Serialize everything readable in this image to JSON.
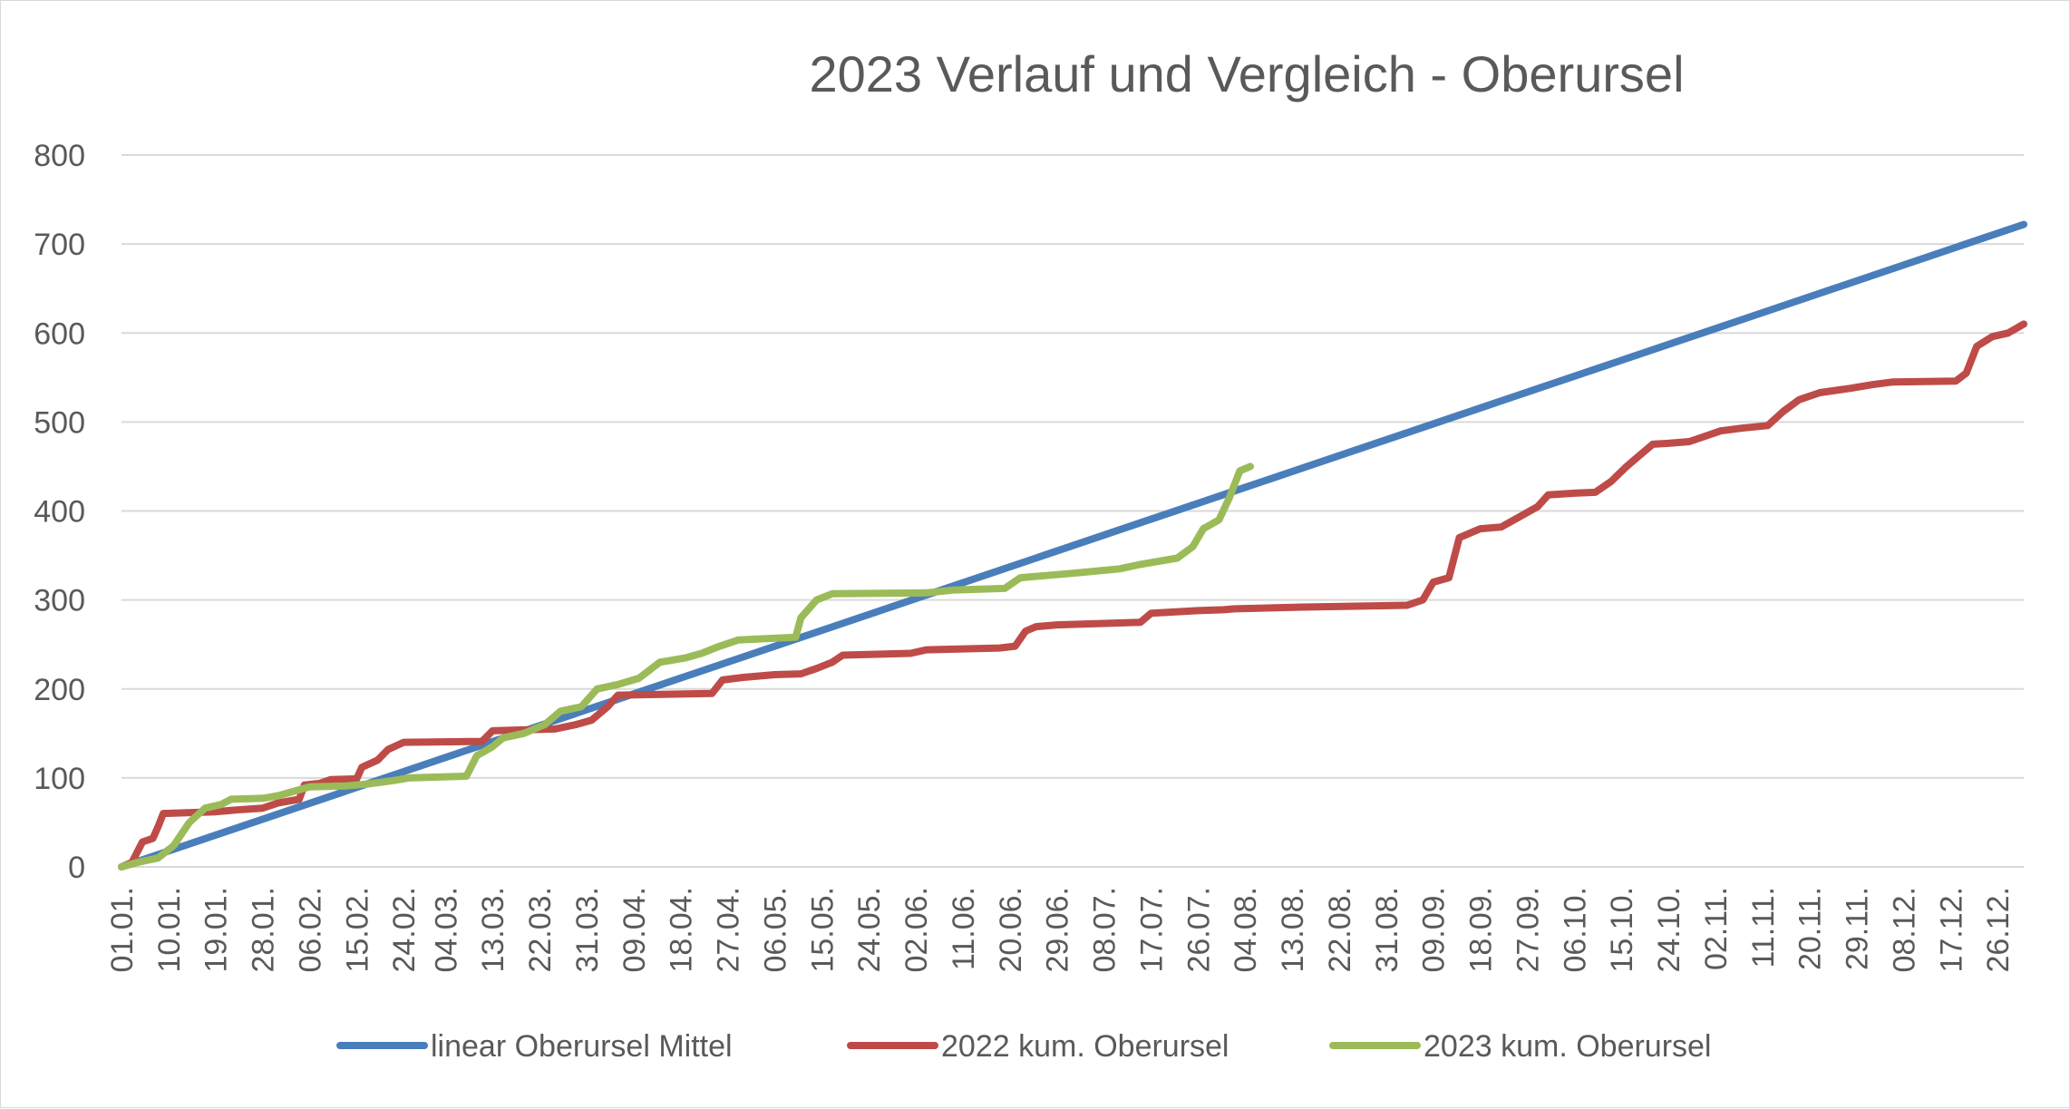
{
  "chart_data": {
    "type": "line",
    "title": "2023 Verlauf und Vergleich - Oberursel",
    "xlabel": "",
    "ylabel": "",
    "ylim": [
      0,
      800
    ],
    "yticks": [
      0,
      100,
      200,
      300,
      400,
      500,
      600,
      700,
      800
    ],
    "xticks": [
      "01.01.",
      "10.01.",
      "19.01.",
      "28.01.",
      "06.02.",
      "15.02.",
      "24.02.",
      "04.03.",
      "13.03.",
      "22.03.",
      "31.03.",
      "09.04.",
      "18.04.",
      "27.04.",
      "06.05.",
      "15.05.",
      "24.05.",
      "02.06.",
      "11.06.",
      "20.06.",
      "29.06.",
      "08.07.",
      "17.07.",
      "26.07.",
      "04.08.",
      "13.08.",
      "22.08.",
      "31.08.",
      "09.09.",
      "18.09.",
      "27.09.",
      "06.10.",
      "15.10.",
      "24.10.",
      "02.11.",
      "11.11.",
      "20.11.",
      "29.11.",
      "08.12.",
      "17.12.",
      "26.12."
    ],
    "grid": true,
    "legend_position": "bottom",
    "series": [
      {
        "name": "linear Oberursel Mittel",
        "color": "#4a7ebb",
        "points": [
          [
            "01.01.",
            0
          ],
          [
            "31.12.",
            722
          ]
        ]
      },
      {
        "name": "2022 kum. Oberursel",
        "color": "#be4b48",
        "points": [
          [
            "01.01.",
            0
          ],
          [
            "03.01.",
            5
          ],
          [
            "05.01.",
            28
          ],
          [
            "07.01.",
            32
          ],
          [
            "08.01.",
            45
          ],
          [
            "09.01.",
            60
          ],
          [
            "19.01.",
            62
          ],
          [
            "23.01.",
            64
          ],
          [
            "28.01.",
            66
          ],
          [
            "31.01.",
            72
          ],
          [
            "04.02.",
            76
          ],
          [
            "05.02.",
            92
          ],
          [
            "08.02.",
            94
          ],
          [
            "10.02.",
            98
          ],
          [
            "15.02.",
            99
          ],
          [
            "16.02.",
            112
          ],
          [
            "19.02.",
            120
          ],
          [
            "21.02.",
            132
          ],
          [
            "24.02.",
            140
          ],
          [
            "11.03.",
            141
          ],
          [
            "13.03.",
            153
          ],
          [
            "25.03.",
            155
          ],
          [
            "29.03.",
            160
          ],
          [
            "01.04.",
            165
          ],
          [
            "04.04.",
            180
          ],
          [
            "06.04.",
            193
          ],
          [
            "24.04.",
            195
          ],
          [
            "26.04.",
            210
          ],
          [
            "30.04.",
            213
          ],
          [
            "06.05.",
            216
          ],
          [
            "11.05.",
            217
          ],
          [
            "14.05.",
            223
          ],
          [
            "17.05.",
            230
          ],
          [
            "19.05.",
            238
          ],
          [
            "01.06.",
            240
          ],
          [
            "04.06.",
            244
          ],
          [
            "18.06.",
            246
          ],
          [
            "21.06.",
            248
          ],
          [
            "23.06.",
            265
          ],
          [
            "25.06.",
            270
          ],
          [
            "29.06.",
            272
          ],
          [
            "15.07.",
            275
          ],
          [
            "17.07.",
            285
          ],
          [
            "26.07.",
            288
          ],
          [
            "31.07.",
            289
          ],
          [
            "02.08.",
            290
          ],
          [
            "15.08.",
            292
          ],
          [
            "04.09.",
            294
          ],
          [
            "07.09.",
            300
          ],
          [
            "09.09.",
            320
          ],
          [
            "12.09.",
            325
          ],
          [
            "14.09.",
            370
          ],
          [
            "18.09.",
            380
          ],
          [
            "22.09.",
            382
          ],
          [
            "26.09.",
            395
          ],
          [
            "29.09.",
            405
          ],
          [
            "01.10.",
            418
          ],
          [
            "06.10.",
            420
          ],
          [
            "10.10.",
            421
          ],
          [
            "13.10.",
            433
          ],
          [
            "16.10.",
            450
          ],
          [
            "18.10.",
            460
          ],
          [
            "21.10.",
            475
          ],
          [
            "24.10.",
            476
          ],
          [
            "28.10.",
            478
          ],
          [
            "31.10.",
            484
          ],
          [
            "03.11.",
            490
          ],
          [
            "07.11.",
            493
          ],
          [
            "12.11.",
            496
          ],
          [
            "15.11.",
            512
          ],
          [
            "18.11.",
            525
          ],
          [
            "22.11.",
            533
          ],
          [
            "28.11.",
            538
          ],
          [
            "02.12.",
            542
          ],
          [
            "06.12.",
            545
          ],
          [
            "18.12.",
            546
          ],
          [
            "20.12.",
            555
          ],
          [
            "22.12.",
            585
          ],
          [
            "25.12.",
            596
          ],
          [
            "28.12.",
            600
          ],
          [
            "31.12.",
            610
          ]
        ]
      },
      {
        "name": "2023 kum. Oberursel",
        "color": "#9bbb59",
        "points": [
          [
            "01.01.",
            0
          ],
          [
            "04.01.",
            5
          ],
          [
            "08.01.",
            10
          ],
          [
            "11.01.",
            24
          ],
          [
            "14.01.",
            50
          ],
          [
            "17.01.",
            66
          ],
          [
            "20.01.",
            70
          ],
          [
            "22.01.",
            76
          ],
          [
            "28.01.",
            77
          ],
          [
            "31.01.",
            80
          ],
          [
            "03.02.",
            85
          ],
          [
            "06.02.",
            90
          ],
          [
            "13.02.",
            91
          ],
          [
            "17.02.",
            93
          ],
          [
            "22.02.",
            97
          ],
          [
            "25.02.",
            100
          ],
          [
            "08.03.",
            102
          ],
          [
            "10.03.",
            125
          ],
          [
            "13.03.",
            135
          ],
          [
            "15.03.",
            145
          ],
          [
            "19.03.",
            150
          ],
          [
            "23.03.",
            160
          ],
          [
            "26.03.",
            175
          ],
          [
            "30.03.",
            180
          ],
          [
            "02.04.",
            200
          ],
          [
            "06.04.",
            205
          ],
          [
            "10.04.",
            212
          ],
          [
            "14.04.",
            230
          ],
          [
            "19.04.",
            235
          ],
          [
            "22.04.",
            240
          ],
          [
            "25.04.",
            247
          ],
          [
            "29.04.",
            255
          ],
          [
            "10.05.",
            258
          ],
          [
            "11.05.",
            280
          ],
          [
            "14.05.",
            300
          ],
          [
            "17.05.",
            307
          ],
          [
            "04.06.",
            308
          ],
          [
            "09.06.",
            311
          ],
          [
            "19.06.",
            313
          ],
          [
            "22.06.",
            325
          ],
          [
            "28.06.",
            328
          ],
          [
            "02.07.",
            330
          ],
          [
            "11.07.",
            335
          ],
          [
            "15.07.",
            340
          ],
          [
            "22.07.",
            347
          ],
          [
            "25.07.",
            360
          ],
          [
            "27.07.",
            380
          ],
          [
            "30.07.",
            390
          ],
          [
            "01.08.",
            415
          ],
          [
            "03.08.",
            445
          ],
          [
            "05.08.",
            450
          ]
        ]
      }
    ]
  }
}
